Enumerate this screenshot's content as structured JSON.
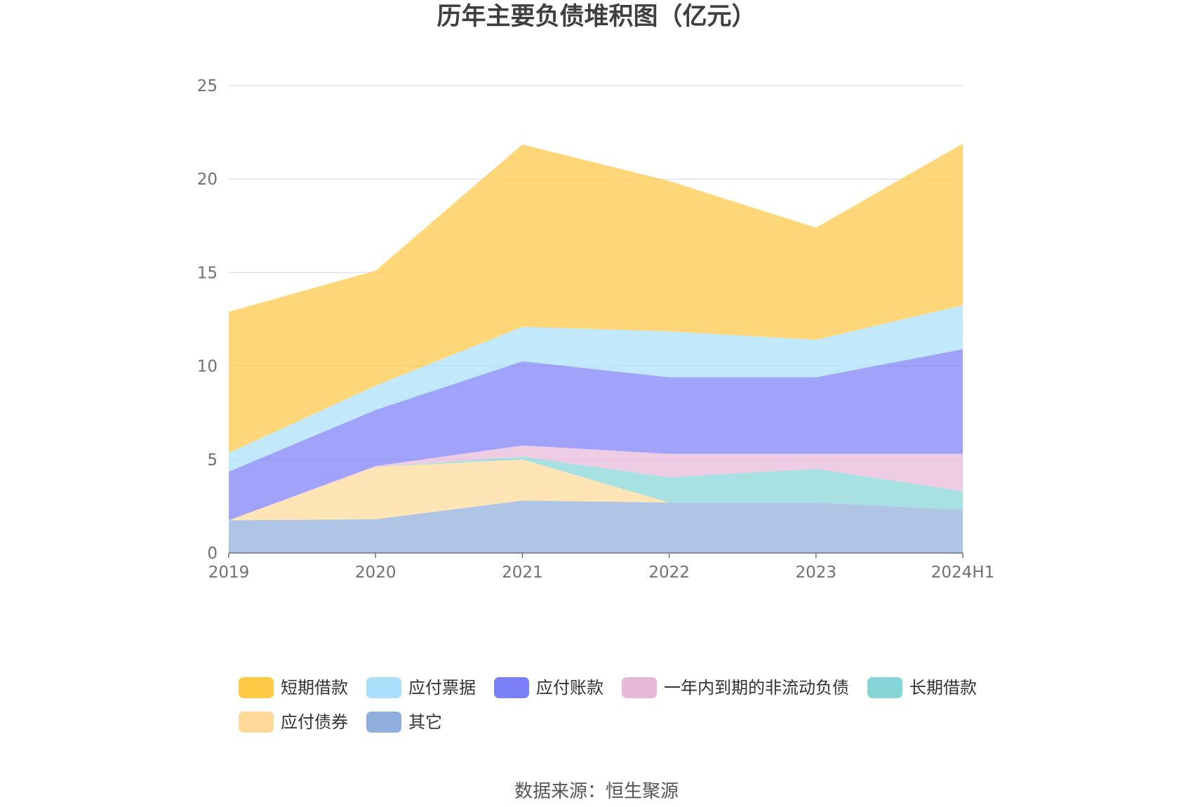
{
  "chart_data": {
    "type": "area",
    "stacked": true,
    "title": "历年主要负债堆积图（亿元）",
    "xlabel": "",
    "ylabel": "",
    "categories": [
      "2019",
      "2020",
      "2021",
      "2022",
      "2023",
      "2024H1"
    ],
    "ylim": [
      0,
      25
    ],
    "yticks": [
      0,
      5,
      10,
      15,
      20,
      25
    ],
    "grid": true,
    "legend_position": "bottom",
    "series": [
      {
        "name": "其它",
        "color": "#90AEDB",
        "values": [
          1.75,
          1.8,
          2.8,
          2.7,
          2.7,
          2.3
        ]
      },
      {
        "name": "应付债券",
        "color": "#FFD999",
        "values": [
          0,
          2.8,
          2.2,
          0,
          0,
          0
        ]
      },
      {
        "name": "长期借款",
        "color": "#85D6D6",
        "values": [
          0,
          0,
          0.15,
          1.35,
          1.8,
          1.0
        ]
      },
      {
        "name": "一年内到期的非流动负债",
        "color": "#E8B8D8",
        "values": [
          0,
          0.05,
          0.6,
          1.25,
          0.8,
          2.0
        ]
      },
      {
        "name": "应付账款",
        "color": "#7B7FF7",
        "values": [
          2.6,
          3.0,
          4.5,
          4.1,
          4.1,
          5.6
        ]
      },
      {
        "name": "应付票据",
        "color": "#A9DFF9",
        "values": [
          1.0,
          1.3,
          1.85,
          2.45,
          2.0,
          2.35
        ]
      },
      {
        "name": "短期借款",
        "color": "#FFC845",
        "values": [
          7.55,
          6.15,
          9.75,
          8.05,
          6.0,
          8.65
        ]
      }
    ],
    "legend_order": [
      "短期借款",
      "应付票据",
      "应付账款",
      "一年内到期的非流动负债",
      "长期借款",
      "应付债券",
      "其它"
    ],
    "source": "数据来源：恒生聚源"
  }
}
